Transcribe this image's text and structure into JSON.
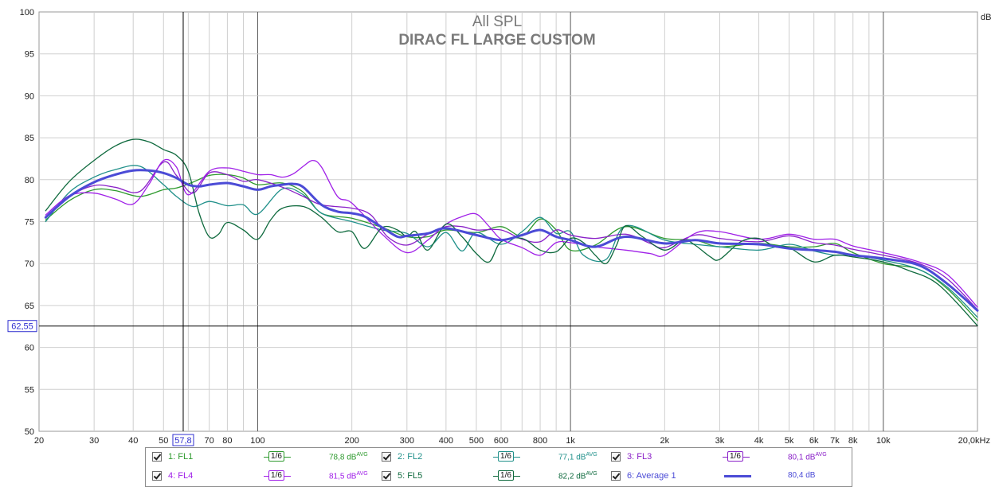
{
  "chart_data": {
    "type": "line",
    "title": "All SPL",
    "subtitle": "DIRAC FL LARGE CUSTOM",
    "xscale": "log",
    "xlim": [
      20,
      20000
    ],
    "ylim": [
      50,
      100
    ],
    "y_unit": "dB",
    "grid": true,
    "cursor": {
      "x_readout": "57,8",
      "y_readout": "62,55",
      "x": 57.8,
      "y": 62.55
    },
    "x_ticks": [
      {
        "v": 20,
        "t": "20"
      },
      {
        "v": 30,
        "t": "30"
      },
      {
        "v": 40,
        "t": "40"
      },
      {
        "v": 50,
        "t": "50"
      },
      {
        "v": 70,
        "t": "70"
      },
      {
        "v": 80,
        "t": "80"
      },
      {
        "v": 100,
        "t": "100"
      },
      {
        "v": 200,
        "t": "200"
      },
      {
        "v": 300,
        "t": "300"
      },
      {
        "v": 400,
        "t": "400"
      },
      {
        "v": 500,
        "t": "500"
      },
      {
        "v": 600,
        "t": "600"
      },
      {
        "v": 800,
        "t": "800"
      },
      {
        "v": 1000,
        "t": "1k"
      },
      {
        "v": 2000,
        "t": "2k"
      },
      {
        "v": 3000,
        "t": "3k"
      },
      {
        "v": 4000,
        "t": "4k"
      },
      {
        "v": 5000,
        "t": "5k"
      },
      {
        "v": 6000,
        "t": "6k"
      },
      {
        "v": 7000,
        "t": "7k"
      },
      {
        "v": 8000,
        "t": "8k"
      },
      {
        "v": 10000,
        "t": "10k"
      },
      {
        "v": 20000,
        "t": "20,0kHz"
      }
    ],
    "y_ticks": [
      {
        "v": 100,
        "t": "100"
      },
      {
        "v": 95,
        "t": "95"
      },
      {
        "v": 90,
        "t": "90"
      },
      {
        "v": 85,
        "t": "85"
      },
      {
        "v": 80,
        "t": "80"
      },
      {
        "v": 75,
        "t": "75"
      },
      {
        "v": 70,
        "t": "70"
      },
      {
        "v": 65,
        "t": "65"
      },
      {
        "v": 60,
        "t": "60"
      },
      {
        "v": 55,
        "t": "55"
      },
      {
        "v": 50,
        "t": "50"
      }
    ],
    "series": [
      {
        "name": "FL1",
        "color": "#2e9a2e",
        "width": 1.3,
        "x": [
          21,
          25,
          30,
          35,
          42,
          50,
          55,
          62,
          70,
          80,
          90,
          100,
          120,
          140,
          160,
          200,
          250,
          300,
          350,
          400,
          500,
          600,
          700,
          800,
          900,
          1000,
          1200,
          1500,
          2000,
          2500,
          3000,
          4000,
          5000,
          6000,
          7000,
          8000,
          10000,
          13000,
          16000,
          20000
        ],
        "y": [
          75.2,
          77.5,
          78.8,
          78.7,
          78.0,
          78.8,
          79.0,
          79.7,
          80.5,
          80.6,
          80.2,
          79.4,
          79.6,
          78.5,
          76.0,
          75.4,
          74.3,
          73.2,
          73.2,
          74.0,
          73.7,
          74.4,
          73.3,
          75.3,
          74.0,
          71.6,
          72.2,
          74.4,
          73.0,
          72.8,
          72.0,
          72.4,
          72.0,
          72.0,
          72.4,
          71.3,
          70.0,
          69.3,
          67.0,
          63.2
        ]
      },
      {
        "name": "FL2",
        "color": "#20908a",
        "width": 1.3,
        "x": [
          21,
          25,
          30,
          35,
          42,
          50,
          55,
          62,
          70,
          80,
          90,
          100,
          120,
          140,
          160,
          200,
          250,
          300,
          350,
          400,
          450,
          500,
          600,
          700,
          800,
          900,
          1000,
          1100,
          1300,
          1500,
          2000,
          2500,
          3000,
          4000,
          5000,
          6000,
          7000,
          8000,
          10000,
          13000,
          16000,
          20000
        ],
        "y": [
          75.0,
          78.5,
          80.3,
          81.2,
          81.6,
          79.4,
          78.0,
          76.8,
          77.4,
          76.9,
          77.0,
          75.9,
          78.9,
          78.2,
          76.0,
          75.0,
          74.0,
          73.6,
          72.0,
          73.7,
          71.5,
          73.7,
          72.3,
          73.8,
          75.5,
          73.6,
          73.8,
          71.0,
          70.5,
          74.5,
          72.8,
          72.3,
          72.0,
          71.6,
          72.3,
          71.5,
          71.0,
          71.0,
          70.4,
          69.3,
          67.2,
          63.6
        ]
      },
      {
        "name": "FL3",
        "color": "#8a20c8",
        "width": 1.3,
        "x": [
          21,
          25,
          30,
          35,
          42,
          50,
          55,
          62,
          70,
          80,
          90,
          100,
          120,
          140,
          160,
          200,
          230,
          260,
          300,
          350,
          400,
          450,
          500,
          600,
          700,
          800,
          900,
          1000,
          1200,
          1500,
          1800,
          2000,
          2500,
          3000,
          4000,
          5000,
          6000,
          7000,
          8000,
          10000,
          13000,
          16000,
          20000
        ],
        "y": [
          75.5,
          78.0,
          79.3,
          79.1,
          78.6,
          82.1,
          80.5,
          78.4,
          80.8,
          80.6,
          79.8,
          80.0,
          79.1,
          78.0,
          77.0,
          76.6,
          75.8,
          73.2,
          72.2,
          73.5,
          74.4,
          74.4,
          74.0,
          74.0,
          72.9,
          72.6,
          74.0,
          73.4,
          73.0,
          73.5,
          72.4,
          71.9,
          73.4,
          73.0,
          72.6,
          73.3,
          72.5,
          72.2,
          71.7,
          71.0,
          70.0,
          68.2,
          64.5
        ]
      },
      {
        "name": "FL4",
        "color": "#a020e8",
        "width": 1.3,
        "x": [
          21,
          25,
          30,
          35,
          40,
          45,
          50,
          55,
          60,
          70,
          80,
          90,
          100,
          110,
          120,
          130,
          140,
          150,
          160,
          180,
          200,
          250,
          300,
          350,
          400,
          450,
          500,
          550,
          600,
          700,
          800,
          900,
          1000,
          1200,
          1500,
          1800,
          2000,
          2500,
          3000,
          4000,
          5000,
          6000,
          7000,
          8000,
          10000,
          13000,
          16000,
          20000
        ],
        "y": [
          75.8,
          78.1,
          78.4,
          77.7,
          77.1,
          79.5,
          82.3,
          81.5,
          78.2,
          81.0,
          81.4,
          81.0,
          80.6,
          80.6,
          80.3,
          80.7,
          81.6,
          82.3,
          81.5,
          78.0,
          77.2,
          73.5,
          71.3,
          72.8,
          74.7,
          75.6,
          75.9,
          74.4,
          72.9,
          71.9,
          71.0,
          72.5,
          72.5,
          72.0,
          71.6,
          71.2,
          71.0,
          73.6,
          73.8,
          72.9,
          73.5,
          72.9,
          72.9,
          72.1,
          71.3,
          70.2,
          68.7,
          64.8
        ]
      },
      {
        "name": "FL5",
        "color": "#0f6a3e",
        "width": 1.3,
        "x": [
          21,
          25,
          30,
          35,
          40,
          45,
          50,
          55,
          60,
          65,
          70,
          75,
          80,
          90,
          100,
          110,
          120,
          140,
          160,
          180,
          200,
          220,
          250,
          280,
          300,
          320,
          350,
          400,
          450,
          500,
          550,
          600,
          700,
          800,
          900,
          1000,
          1100,
          1200,
          1300,
          1400,
          1500,
          1700,
          2000,
          2300,
          2500,
          2800,
          3000,
          3500,
          4000,
          4500,
          5000,
          6000,
          7000,
          8000,
          10000,
          12000,
          15000,
          20000
        ],
        "y": [
          76.3,
          79.8,
          82.3,
          84.0,
          84.8,
          84.5,
          83.6,
          82.9,
          81.0,
          76.0,
          73.2,
          73.5,
          74.9,
          74.0,
          72.9,
          75.2,
          76.6,
          76.8,
          75.5,
          73.8,
          73.8,
          71.8,
          74.3,
          74.0,
          73.2,
          73.8,
          71.6,
          74.7,
          73.2,
          71.2,
          70.2,
          72.6,
          73.0,
          71.6,
          71.4,
          73.0,
          72.5,
          71.0,
          70.0,
          72.1,
          74.5,
          73.2,
          71.6,
          72.8,
          72.2,
          70.8,
          70.5,
          72.6,
          73.0,
          72.0,
          71.9,
          70.2,
          71.0,
          70.8,
          70.2,
          69.2,
          67.5,
          62.6
        ]
      },
      {
        "name": "Average 1",
        "color": "#4b4bd6",
        "width": 3,
        "x": [
          21,
          25,
          30,
          35,
          40,
          45,
          50,
          55,
          60,
          65,
          70,
          80,
          90,
          100,
          110,
          120,
          130,
          140,
          160,
          180,
          200,
          220,
          250,
          280,
          300,
          350,
          400,
          500,
          600,
          700,
          800,
          900,
          1000,
          1200,
          1500,
          2000,
          2500,
          3000,
          4000,
          5000,
          6000,
          7000,
          8000,
          10000,
          13000,
          16000,
          20000
        ],
        "y": [
          75.5,
          78.0,
          79.7,
          80.6,
          81.1,
          81.1,
          80.8,
          80.2,
          79.4,
          79.2,
          79.4,
          79.6,
          79.2,
          78.8,
          79.2,
          79.4,
          79.5,
          79.1,
          77.0,
          76.2,
          76.0,
          75.6,
          74.3,
          73.2,
          73.3,
          73.6,
          74.2,
          73.4,
          72.8,
          73.4,
          74.0,
          73.2,
          72.8,
          72.0,
          73.2,
          72.4,
          72.8,
          72.4,
          72.3,
          71.8,
          71.6,
          71.4,
          71.0,
          70.6,
          69.8,
          67.6,
          64.4
        ]
      }
    ]
  },
  "legend": {
    "smooth_label": "1/6",
    "rows": [
      [
        {
          "label": "1: FL1",
          "value": "78,8 dB",
          "sup": "AVG",
          "color": "#2e9a2e",
          "avg": false
        },
        {
          "label": "2: FL2",
          "value": "77,1 dB",
          "sup": "AVG",
          "color": "#20908a",
          "avg": false
        },
        {
          "label": "3: FL3",
          "value": "80,1 dB",
          "sup": "AVG",
          "color": "#8a20c8",
          "avg": false
        }
      ],
      [
        {
          "label": "4: FL4",
          "value": "81,5 dB",
          "sup": "AVG",
          "color": "#a020e8",
          "avg": false
        },
        {
          "label": "5: FL5",
          "value": "82,2 dB",
          "sup": "AVG",
          "color": "#0f6a3e",
          "avg": false
        },
        {
          "label": "6: Average 1",
          "value": "80,4 dB",
          "sup": "",
          "color": "#4b4bd6",
          "avg": true
        }
      ]
    ]
  }
}
